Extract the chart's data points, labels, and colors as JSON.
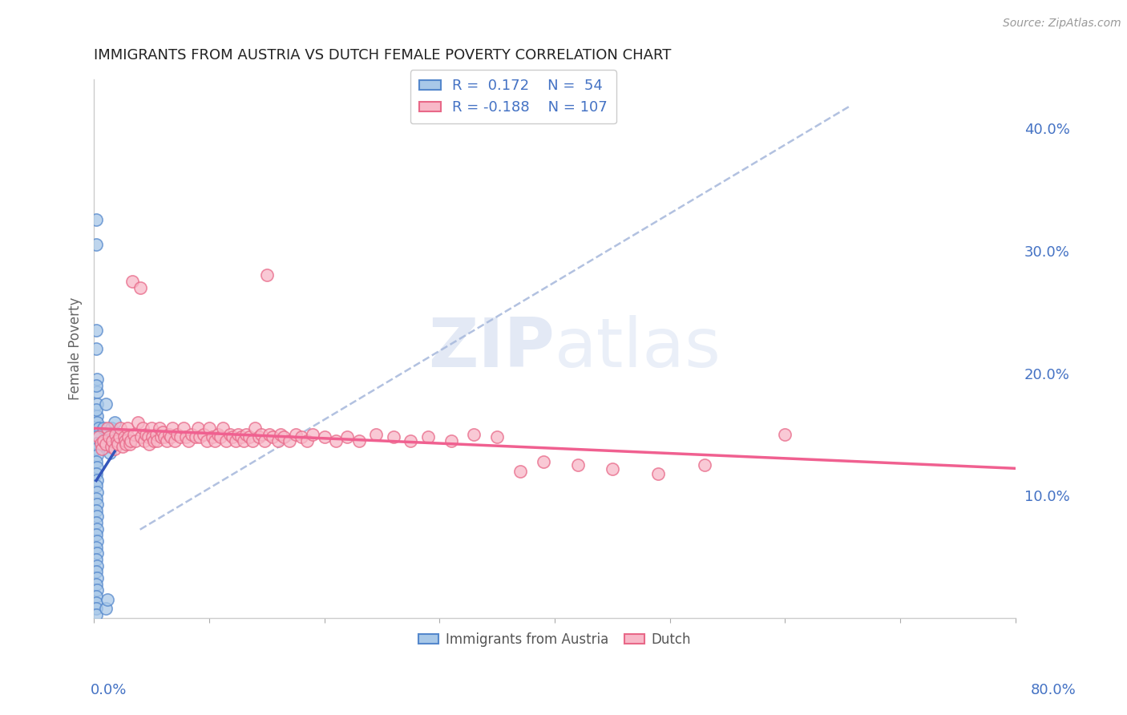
{
  "title": "IMMIGRANTS FROM AUSTRIA VS DUTCH FEMALE POVERTY CORRELATION CHART",
  "source_text": "Source: ZipAtlas.com",
  "ylabel": "Female Poverty",
  "xlim": [
    0.0,
    0.8
  ],
  "ylim": [
    0.0,
    0.44
  ],
  "yticks": [
    0.1,
    0.2,
    0.3,
    0.4
  ],
  "ytick_labels": [
    "10.0%",
    "20.0%",
    "30.0%",
    "40.0%"
  ],
  "color_austria": "#a8c8e8",
  "color_austria_edge": "#5588cc",
  "color_dutch": "#f8b8c8",
  "color_dutch_edge": "#e86888",
  "color_austria_line": "#3355bb",
  "color_dutch_line": "#f06090",
  "color_gray_dashed": "#aabbdd",
  "title_color": "#222222",
  "axis_label_color": "#4472c4",
  "watermark_color": "#ccd8ee",
  "scatter_austria": [
    [
      0.002,
      0.325
    ],
    [
      0.002,
      0.305
    ],
    [
      0.002,
      0.235
    ],
    [
      0.003,
      0.195
    ],
    [
      0.002,
      0.22
    ],
    [
      0.003,
      0.185
    ],
    [
      0.003,
      0.175
    ],
    [
      0.002,
      0.19
    ],
    [
      0.003,
      0.165
    ],
    [
      0.002,
      0.17
    ],
    [
      0.003,
      0.16
    ],
    [
      0.004,
      0.155
    ],
    [
      0.003,
      0.15
    ],
    [
      0.002,
      0.148
    ],
    [
      0.003,
      0.143
    ],
    [
      0.002,
      0.138
    ],
    [
      0.003,
      0.133
    ],
    [
      0.002,
      0.128
    ],
    [
      0.003,
      0.123
    ],
    [
      0.002,
      0.118
    ],
    [
      0.003,
      0.113
    ],
    [
      0.002,
      0.108
    ],
    [
      0.003,
      0.103
    ],
    [
      0.002,
      0.098
    ],
    [
      0.003,
      0.093
    ],
    [
      0.002,
      0.088
    ],
    [
      0.003,
      0.083
    ],
    [
      0.002,
      0.078
    ],
    [
      0.003,
      0.073
    ],
    [
      0.002,
      0.068
    ],
    [
      0.003,
      0.063
    ],
    [
      0.002,
      0.058
    ],
    [
      0.003,
      0.053
    ],
    [
      0.002,
      0.048
    ],
    [
      0.003,
      0.043
    ],
    [
      0.002,
      0.038
    ],
    [
      0.003,
      0.033
    ],
    [
      0.002,
      0.028
    ],
    [
      0.003,
      0.023
    ],
    [
      0.002,
      0.018
    ],
    [
      0.002,
      0.013
    ],
    [
      0.002,
      0.008
    ],
    [
      0.002,
      0.003
    ],
    [
      0.008,
      0.155
    ],
    [
      0.01,
      0.175
    ],
    [
      0.01,
      0.145
    ],
    [
      0.012,
      0.14
    ],
    [
      0.014,
      0.135
    ],
    [
      0.015,
      0.15
    ],
    [
      0.018,
      0.145
    ],
    [
      0.015,
      0.155
    ],
    [
      0.018,
      0.16
    ],
    [
      0.01,
      0.008
    ],
    [
      0.012,
      0.015
    ]
  ],
  "scatter_dutch": [
    [
      0.004,
      0.148
    ],
    [
      0.006,
      0.143
    ],
    [
      0.007,
      0.138
    ],
    [
      0.008,
      0.145
    ],
    [
      0.01,
      0.142
    ],
    [
      0.012,
      0.155
    ],
    [
      0.013,
      0.148
    ],
    [
      0.015,
      0.14
    ],
    [
      0.016,
      0.145
    ],
    [
      0.018,
      0.138
    ],
    [
      0.019,
      0.15
    ],
    [
      0.02,
      0.145
    ],
    [
      0.021,
      0.142
    ],
    [
      0.022,
      0.148
    ],
    [
      0.023,
      0.155
    ],
    [
      0.025,
      0.14
    ],
    [
      0.026,
      0.148
    ],
    [
      0.027,
      0.145
    ],
    [
      0.028,
      0.142
    ],
    [
      0.029,
      0.155
    ],
    [
      0.03,
      0.148
    ],
    [
      0.031,
      0.142
    ],
    [
      0.032,
      0.145
    ],
    [
      0.033,
      0.275
    ],
    [
      0.035,
      0.15
    ],
    [
      0.036,
      0.145
    ],
    [
      0.038,
      0.16
    ],
    [
      0.04,
      0.27
    ],
    [
      0.041,
      0.148
    ],
    [
      0.042,
      0.155
    ],
    [
      0.044,
      0.145
    ],
    [
      0.045,
      0.15
    ],
    [
      0.047,
      0.148
    ],
    [
      0.048,
      0.142
    ],
    [
      0.05,
      0.155
    ],
    [
      0.051,
      0.148
    ],
    [
      0.052,
      0.145
    ],
    [
      0.054,
      0.15
    ],
    [
      0.055,
      0.145
    ],
    [
      0.057,
      0.155
    ],
    [
      0.058,
      0.148
    ],
    [
      0.06,
      0.152
    ],
    [
      0.061,
      0.148
    ],
    [
      0.063,
      0.145
    ],
    [
      0.065,
      0.15
    ],
    [
      0.067,
      0.148
    ],
    [
      0.068,
      0.155
    ],
    [
      0.07,
      0.145
    ],
    [
      0.072,
      0.15
    ],
    [
      0.075,
      0.148
    ],
    [
      0.078,
      0.155
    ],
    [
      0.08,
      0.148
    ],
    [
      0.082,
      0.145
    ],
    [
      0.085,
      0.15
    ],
    [
      0.088,
      0.148
    ],
    [
      0.09,
      0.155
    ],
    [
      0.092,
      0.148
    ],
    [
      0.095,
      0.15
    ],
    [
      0.098,
      0.145
    ],
    [
      0.1,
      0.155
    ],
    [
      0.103,
      0.148
    ],
    [
      0.105,
      0.145
    ],
    [
      0.108,
      0.15
    ],
    [
      0.11,
      0.148
    ],
    [
      0.112,
      0.155
    ],
    [
      0.115,
      0.145
    ],
    [
      0.118,
      0.15
    ],
    [
      0.12,
      0.148
    ],
    [
      0.123,
      0.145
    ],
    [
      0.125,
      0.15
    ],
    [
      0.128,
      0.148
    ],
    [
      0.13,
      0.145
    ],
    [
      0.132,
      0.15
    ],
    [
      0.135,
      0.148
    ],
    [
      0.138,
      0.145
    ],
    [
      0.14,
      0.155
    ],
    [
      0.143,
      0.148
    ],
    [
      0.145,
      0.15
    ],
    [
      0.148,
      0.145
    ],
    [
      0.15,
      0.28
    ],
    [
      0.152,
      0.15
    ],
    [
      0.155,
      0.148
    ],
    [
      0.16,
      0.145
    ],
    [
      0.162,
      0.15
    ],
    [
      0.165,
      0.148
    ],
    [
      0.17,
      0.145
    ],
    [
      0.175,
      0.15
    ],
    [
      0.18,
      0.148
    ],
    [
      0.185,
      0.145
    ],
    [
      0.19,
      0.15
    ],
    [
      0.2,
      0.148
    ],
    [
      0.21,
      0.145
    ],
    [
      0.22,
      0.148
    ],
    [
      0.23,
      0.145
    ],
    [
      0.245,
      0.15
    ],
    [
      0.26,
      0.148
    ],
    [
      0.275,
      0.145
    ],
    [
      0.29,
      0.148
    ],
    [
      0.31,
      0.145
    ],
    [
      0.33,
      0.15
    ],
    [
      0.35,
      0.148
    ],
    [
      0.37,
      0.12
    ],
    [
      0.39,
      0.128
    ],
    [
      0.42,
      0.125
    ],
    [
      0.45,
      0.122
    ],
    [
      0.49,
      0.118
    ],
    [
      0.53,
      0.125
    ],
    [
      0.6,
      0.15
    ]
  ]
}
